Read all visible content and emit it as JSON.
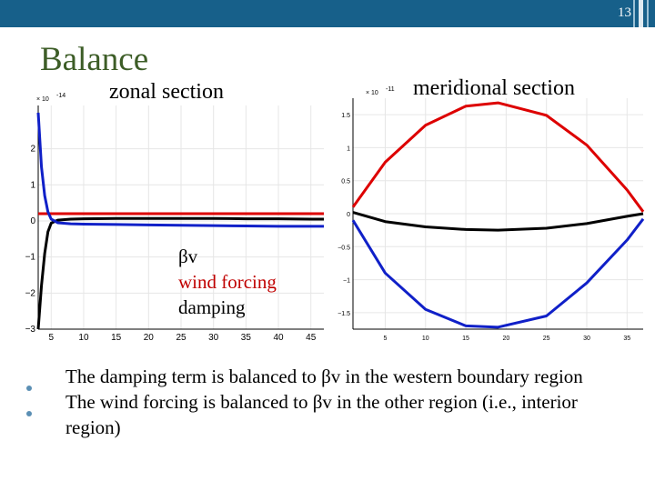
{
  "slide": {
    "number": "13",
    "title": "Balance"
  },
  "legend": {
    "bv": "βv",
    "wind": "wind forcing",
    "damping": "damping"
  },
  "bullets": [
    "The damping term is balanced to βv in the western boundary region",
    "The wind forcing is balanced to βv in the other region (i.e., interior region)"
  ],
  "colors": {
    "topbar": "#17608a",
    "title": "#3d5d27",
    "red": "#dd0000",
    "blue": "#1020c8",
    "black": "#000000",
    "wind_label": "#c00000",
    "bullet": "#5b8fb4"
  },
  "chart_data": [
    {
      "type": "line",
      "title": "zonal section",
      "exponent_label": "× 10",
      "exponent_power": "-14",
      "xlim": [
        3,
        47
      ],
      "ylim": [
        -3,
        3.2
      ],
      "xticks": [
        5,
        10,
        15,
        20,
        25,
        30,
        35,
        40,
        45
      ],
      "yticks": [
        -3,
        -2,
        -1,
        0,
        1,
        2
      ],
      "series": [
        {
          "name": "βv",
          "color": "#000000",
          "x": [
            3,
            3.5,
            4,
            4.5,
            5,
            6,
            8,
            10,
            15,
            20,
            25,
            30,
            35,
            40,
            45,
            47
          ],
          "y": [
            -3,
            -1.8,
            -0.9,
            -0.3,
            -0.06,
            0.02,
            0.05,
            0.06,
            0.07,
            0.07,
            0.07,
            0.07,
            0.06,
            0.06,
            0.05,
            0.05
          ]
        },
        {
          "name": "wind forcing",
          "color": "#dd0000",
          "x": [
            3,
            47
          ],
          "y": [
            0.2,
            0.2
          ]
        },
        {
          "name": "damping",
          "color": "#1020c8",
          "x": [
            3,
            3.5,
            4,
            4.5,
            5,
            6,
            8,
            10,
            15,
            20,
            25,
            30,
            35,
            40,
            45,
            47
          ],
          "y": [
            3.0,
            1.5,
            0.7,
            0.25,
            0.05,
            -0.05,
            -0.08,
            -0.09,
            -0.1,
            -0.11,
            -0.12,
            -0.13,
            -0.14,
            -0.15,
            -0.15,
            -0.15
          ]
        }
      ]
    },
    {
      "type": "line",
      "title": "meridional section",
      "exponent_label": "× 10",
      "exponent_power": "-11",
      "xlim": [
        1,
        37
      ],
      "ylim": [
        -1.75,
        1.75
      ],
      "xticks": [
        5,
        10,
        15,
        20,
        25,
        30,
        35
      ],
      "yticks": [
        -1.5,
        -1,
        -0.5,
        0,
        0.5,
        1,
        1.5
      ],
      "series": [
        {
          "name": "βv",
          "color": "#000000",
          "x": [
            1,
            5,
            10,
            15,
            19,
            25,
            30,
            35,
            37
          ],
          "y": [
            0.02,
            -0.12,
            -0.2,
            -0.24,
            -0.25,
            -0.22,
            -0.15,
            -0.04,
            0.0
          ]
        },
        {
          "name": "wind forcing",
          "color": "#dd0000",
          "x": [
            1,
            5,
            10,
            15,
            19,
            25,
            30,
            35,
            37
          ],
          "y": [
            0.1,
            0.78,
            1.34,
            1.63,
            1.68,
            1.49,
            1.04,
            0.36,
            0.03
          ]
        },
        {
          "name": "damping",
          "color": "#1020c8",
          "x": [
            1,
            5,
            10,
            15,
            19,
            25,
            30,
            35,
            37
          ],
          "y": [
            -0.1,
            -0.9,
            -1.45,
            -1.7,
            -1.72,
            -1.55,
            -1.05,
            -0.4,
            -0.08
          ]
        }
      ]
    }
  ]
}
